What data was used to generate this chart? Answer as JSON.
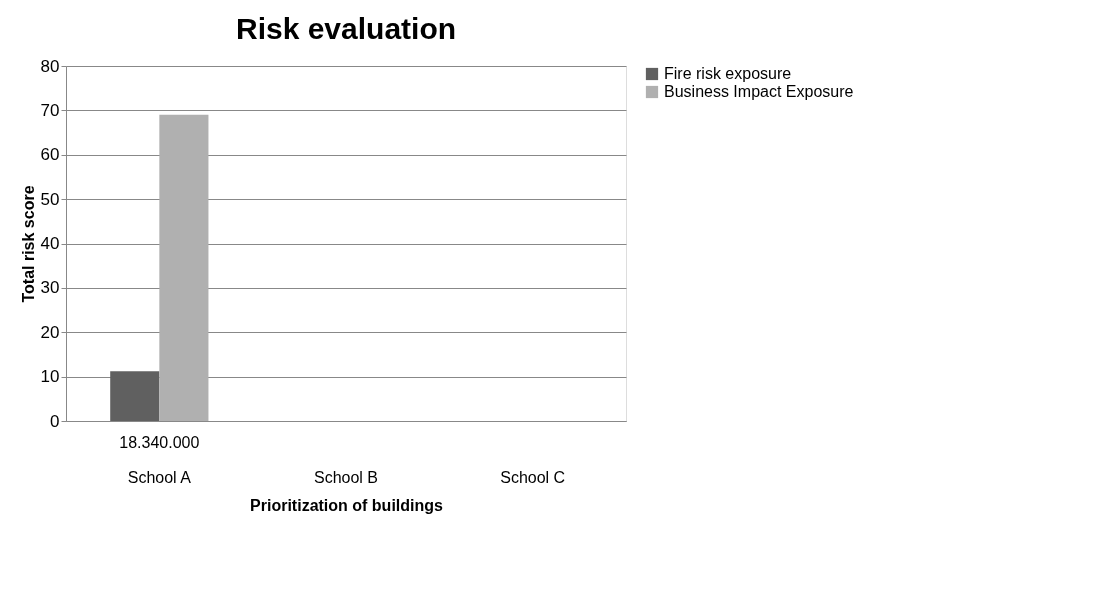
{
  "chart_data": {
    "type": "bar",
    "title": "Risk evaluation",
    "xlabel": "Prioritization of buildings",
    "ylabel": "Total risk score",
    "categories": [
      "School A",
      "School B",
      "School C"
    ],
    "series": [
      {
        "name": "Fire risk exposure",
        "color": "#606060",
        "values": [
          11.2,
          null,
          null
        ]
      },
      {
        "name": "Business Impact Exposure",
        "color": "#b0b0b0",
        "values": [
          69,
          null,
          null
        ]
      }
    ],
    "ylim": [
      0,
      80
    ],
    "yticks": [
      0,
      10,
      20,
      30,
      40,
      50,
      60,
      70,
      80
    ],
    "grid": "y",
    "legend": "right",
    "annotations": [
      "18.340.000"
    ]
  }
}
